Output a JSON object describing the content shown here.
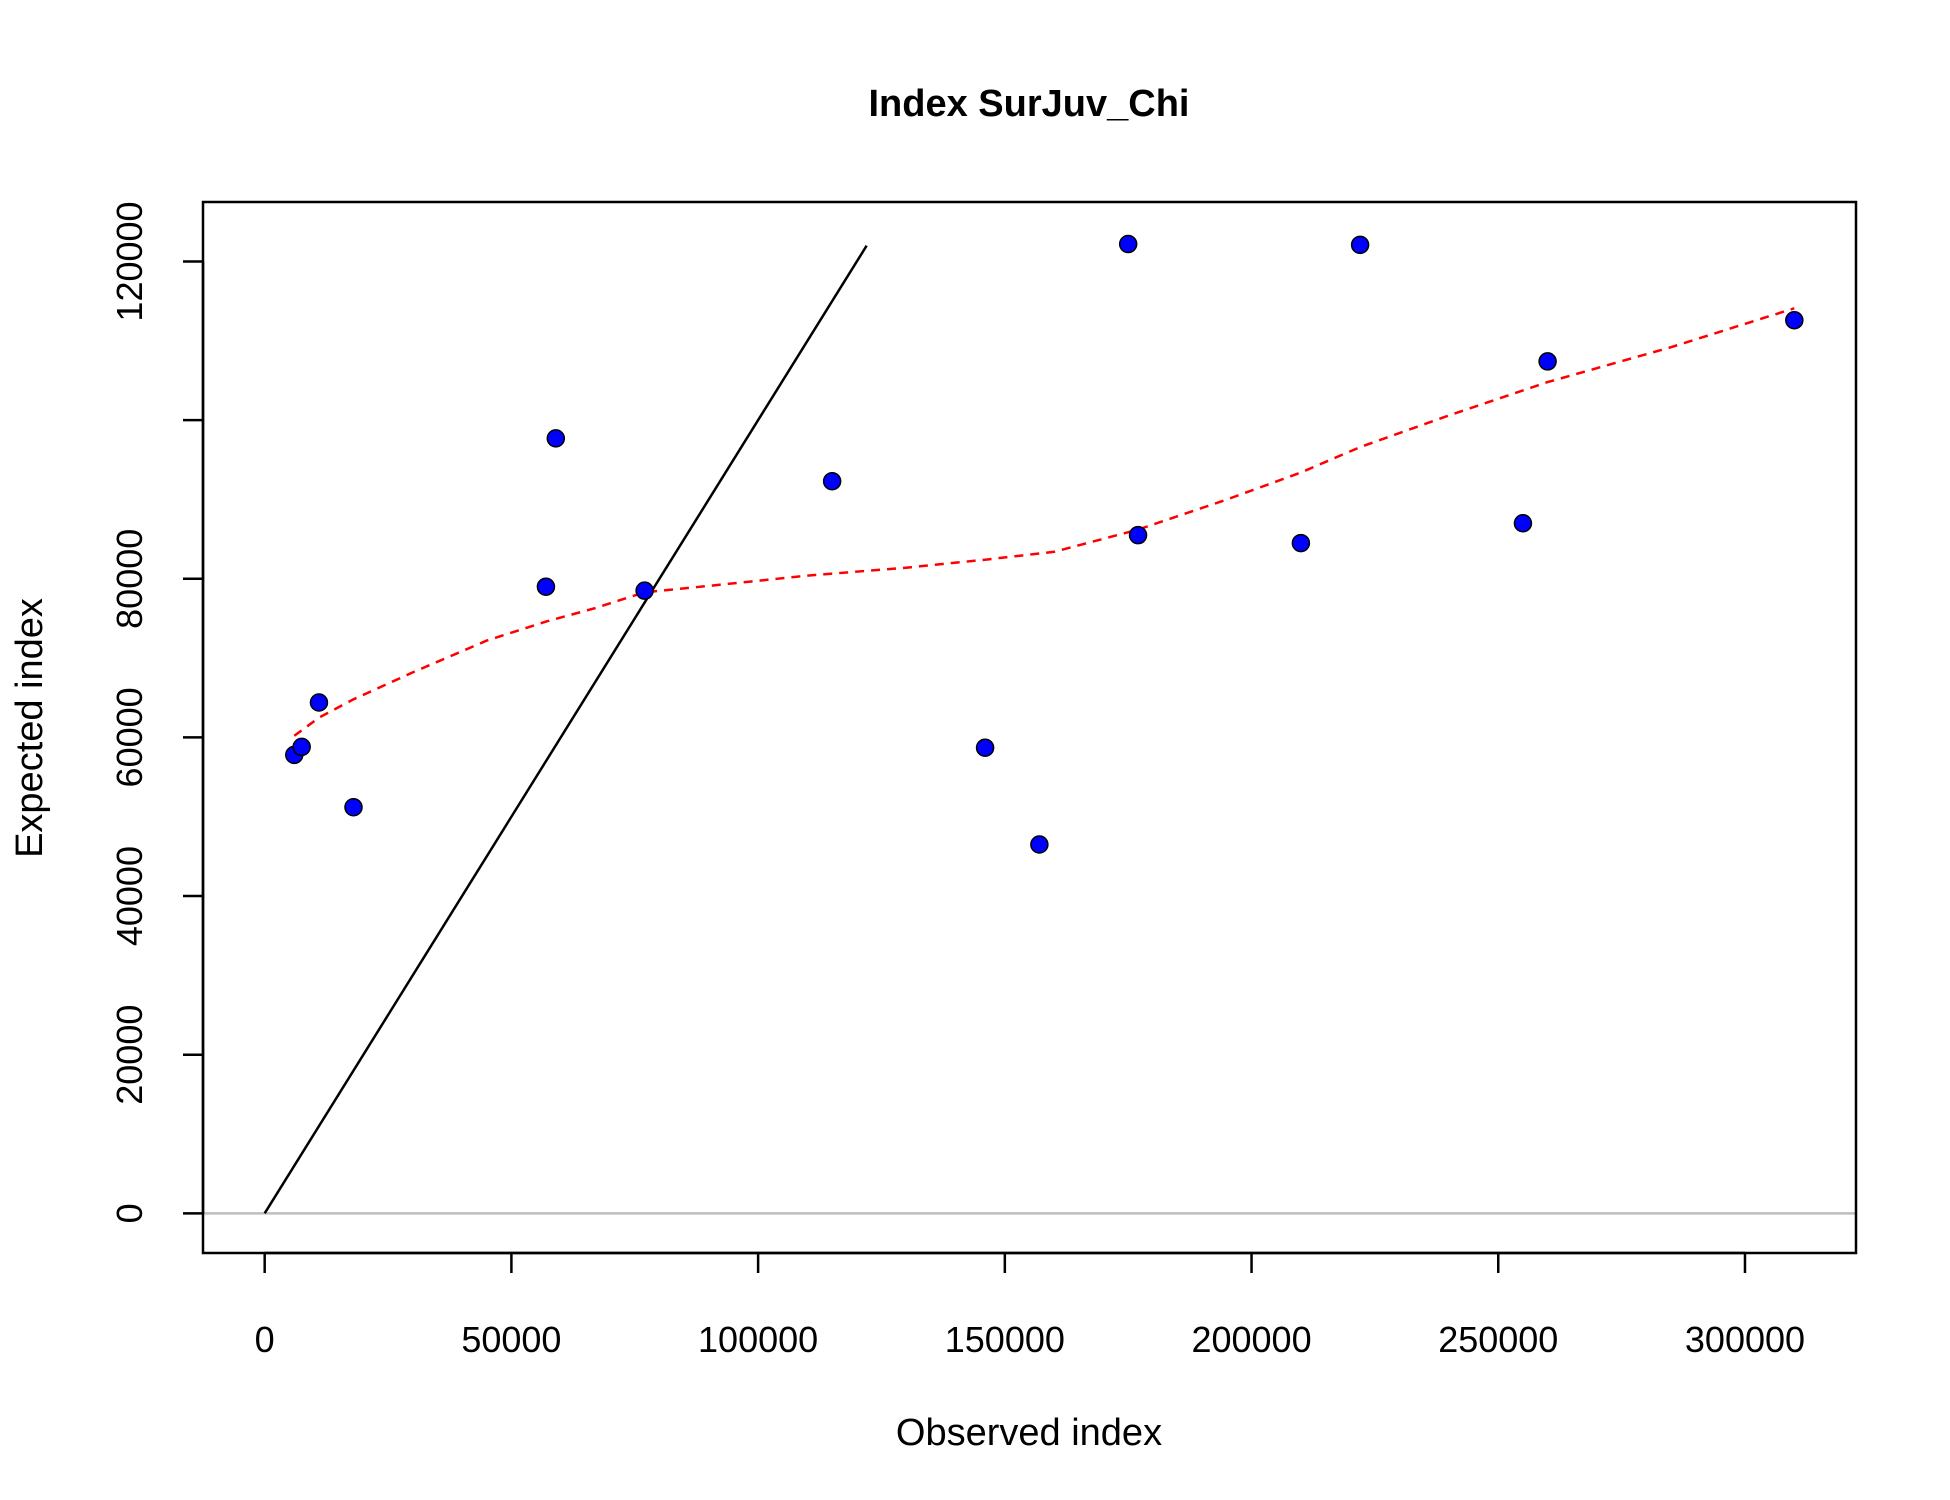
{
  "chart_data": {
    "type": "scatter",
    "title": "Index SurJuv_Chi",
    "xlabel": "Observed index",
    "ylabel": "Expected index",
    "xlim": [
      -12500,
      322500
    ],
    "ylim": [
      -5000,
      127500
    ],
    "x_ticks": [
      0,
      50000,
      100000,
      150000,
      200000,
      250000,
      300000
    ],
    "x_tick_labels": [
      "0",
      "50000",
      "100000",
      "150000",
      "200000",
      "250000",
      "300000"
    ],
    "y_ticks": [
      0,
      20000,
      40000,
      60000,
      80000,
      100000,
      120000
    ],
    "y_tick_labels": [
      "0",
      "20000",
      "40000",
      "60000",
      "80000",
      "",
      "120000"
    ],
    "grid": false,
    "points": {
      "color": "#0000ff",
      "x": [
        6000,
        7500,
        11000,
        18000,
        57000,
        59000,
        77000,
        115000,
        146000,
        157000,
        175000,
        177000,
        210000,
        222000,
        255000,
        260000,
        310000
      ],
      "y": [
        57800,
        58800,
        64400,
        51200,
        79000,
        97700,
        78500,
        92300,
        58700,
        46500,
        122200,
        85500,
        84500,
        122100,
        87000,
        107400,
        112600
      ]
    },
    "reference_lines": [
      {
        "kind": "identity",
        "color": "#000000",
        "x": [
          0,
          122000
        ],
        "y": [
          0,
          122000
        ]
      },
      {
        "kind": "horizontal",
        "color": "#bebebe",
        "y": 0
      }
    ],
    "smoother": {
      "color": "#ff0000",
      "style": "dashed",
      "x": [
        6000,
        11000,
        18000,
        30000,
        45000,
        57000,
        67000,
        77000,
        90000,
        110000,
        130000,
        146000,
        160000,
        177000,
        195000,
        210000,
        222000,
        240000,
        260000,
        285000,
        310000
      ],
      "y": [
        60200,
        62500,
        64800,
        68200,
        72200,
        74600,
        76300,
        78300,
        79100,
        80400,
        81400,
        82400,
        83400,
        86200,
        90000,
        93400,
        96600,
        100600,
        104800,
        109200,
        114100
      ]
    }
  }
}
